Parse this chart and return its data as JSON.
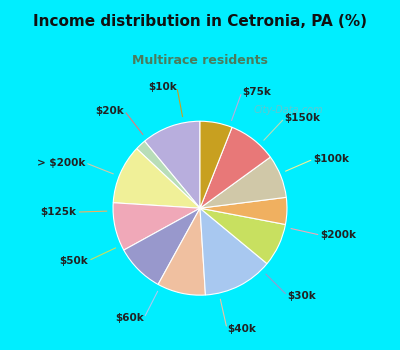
{
  "title": "Income distribution in Cetronia, PA (%)",
  "subtitle": "Multirace residents",
  "title_color": "#111111",
  "subtitle_color": "#4a7c5c",
  "background_cyan": "#00eeff",
  "background_chart": "#dff0e8",
  "labels": [
    "$75k",
    "$150k",
    "$100k",
    "$200k",
    "$30k",
    "$40k",
    "$60k",
    "$50k",
    "$125k",
    "> $200k",
    "$20k",
    "$10k"
  ],
  "sizes": [
    11,
    2,
    11,
    9,
    9,
    9,
    13,
    8,
    5,
    8,
    9,
    6
  ],
  "colors": [
    "#b8aedd",
    "#b8ddb8",
    "#f0f098",
    "#f0a8b8",
    "#9898cc",
    "#f0c0a0",
    "#a8c8f0",
    "#c8e060",
    "#f0b060",
    "#d0c8a8",
    "#e87878",
    "#c8a020"
  ],
  "watermark": "City-Data.com",
  "startangle": 90,
  "label_fontsize": 7.5,
  "title_fontsize": 11,
  "subtitle_fontsize": 9
}
